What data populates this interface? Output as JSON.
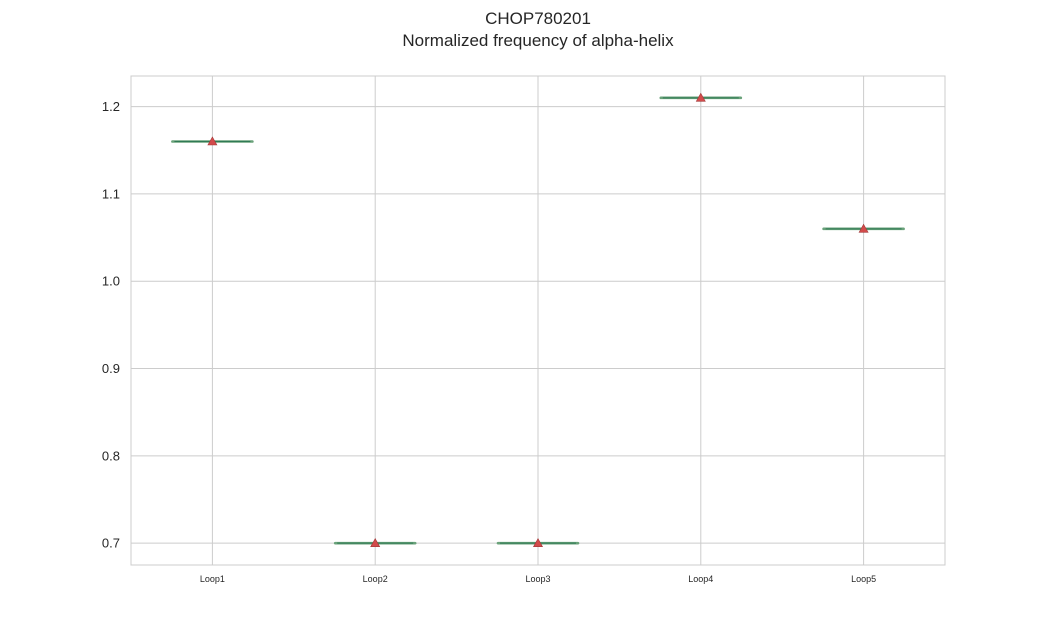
{
  "chart_data": {
    "type": "box",
    "title": "CHOP780201",
    "subtitle": "Normalized frequency of alpha-helix",
    "xlabel": "",
    "ylabel": "",
    "categories": [
      "Loop1",
      "Loop2",
      "Loop3",
      "Loop4",
      "Loop5"
    ],
    "values": [
      1.16,
      0.7,
      0.7,
      1.21,
      1.06
    ],
    "means": [
      1.16,
      0.7,
      0.7,
      1.21,
      1.06
    ],
    "ylim": [
      0.675,
      1.235
    ],
    "yticks": [
      0.7,
      0.8,
      0.9,
      1.0,
      1.1,
      1.2
    ],
    "ytick_labels": [
      "0.7",
      "0.8",
      "0.9",
      "1.0",
      "1.1",
      "1.2"
    ],
    "grid": true,
    "colors": {
      "box_line": "#6aa27a",
      "median_line": "#2f7a55",
      "mean_marker": "#d24b4b",
      "grid": "#cccccc",
      "axes_edge": "#cccccc"
    }
  }
}
